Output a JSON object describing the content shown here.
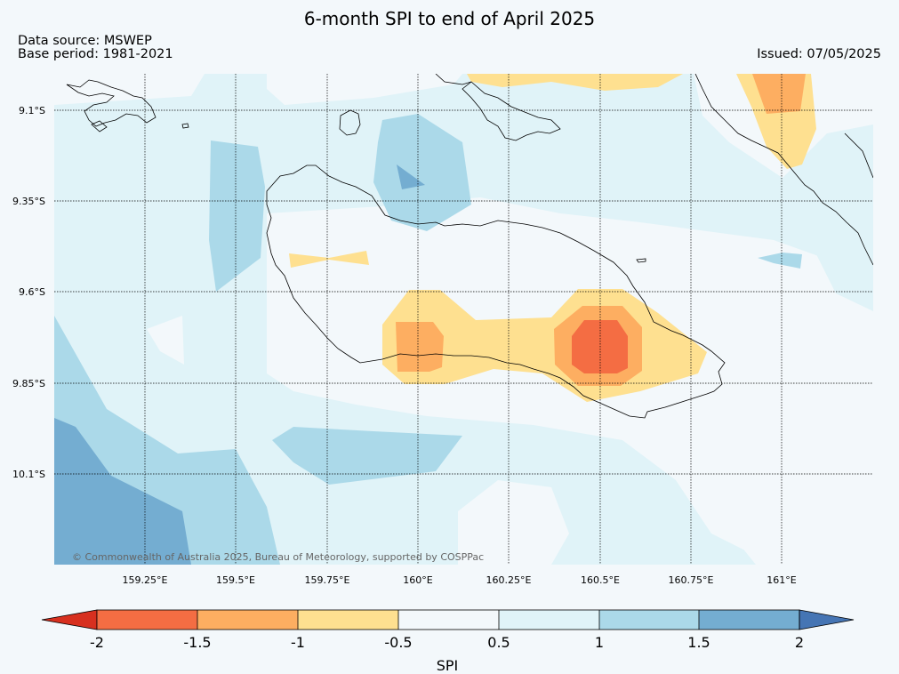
{
  "header": {
    "title": "6-month SPI to end of April 2025",
    "data_source": "Data source: MSWEP",
    "base_period": "Base period: 1981-2021",
    "issued": "Issued: 07/05/2025"
  },
  "map": {
    "region": "Guadalcanal, Solomon Islands",
    "lat_labels": [
      "9.1°S",
      "9.35°S",
      "9.6°S",
      "9.85°S",
      "10.1°S"
    ],
    "lon_labels": [
      "159.25°E",
      "159.5°E",
      "159.75°E",
      "160°E",
      "160.25°E",
      "160.5°E",
      "160.75°E",
      "161°E"
    ],
    "credit": "© Commonwealth of Australia 2025, Bureau of Meteorology, supported by COSPPac",
    "background_color": "#f3f8fb"
  },
  "colorbar": {
    "label": "SPI",
    "ticks": [
      "-2",
      "-1.5",
      "-1",
      "-0.5",
      "0.5",
      "1",
      "1.5",
      "2"
    ],
    "colors": {
      "below_min": "#d7301f",
      "c_-2_-1.5": "#f46d43",
      "c_-1.5_-1": "#fdae61",
      "c_-1_-0.5": "#fee090",
      "c_-0.5_0.5": "#f3f8fb",
      "c_0.5_1": "#e0f3f8",
      "c_1_1.5": "#abd9e9",
      "c_1.5_2": "#74add1",
      "above_max": "#4575b4"
    }
  }
}
